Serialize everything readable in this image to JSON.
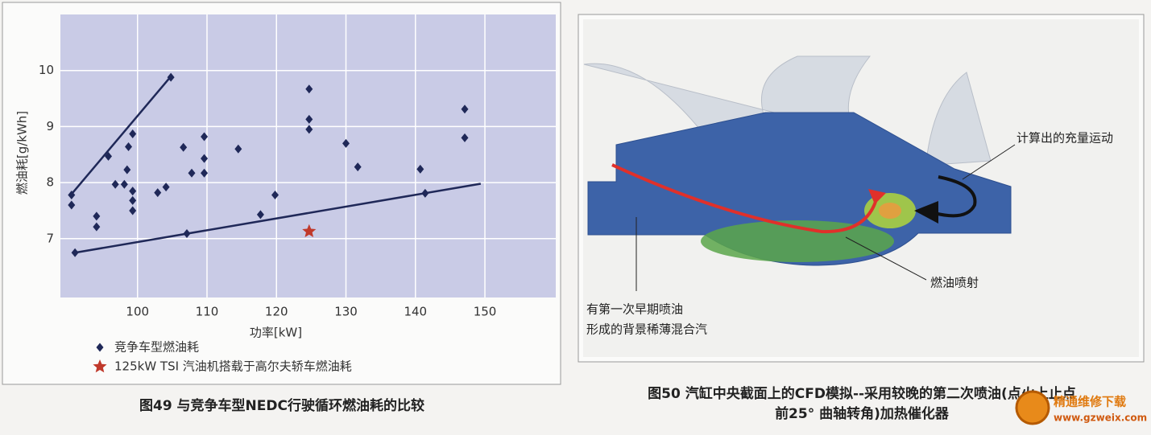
{
  "chart_data": {
    "type": "scatter",
    "xlabel": "功率[kW]",
    "ylabel": "燃油耗[g/kWh]",
    "xlim": [
      88.9,
      160.2
    ],
    "ylim": [
      5.95,
      11.0
    ],
    "xticks": [
      100,
      110,
      120,
      130,
      140,
      150
    ],
    "yticks": [
      7,
      8,
      9,
      10
    ],
    "grid": true,
    "background": "#c9cbe6",
    "legend": "bottom-left",
    "series": [
      {
        "name": "竞争车型燃油耗",
        "marker": "diamond",
        "color": "#1f2858",
        "x": [
          90.5,
          90.5,
          91.0,
          94.1,
          94.1,
          95.8,
          96.8,
          98.1,
          98.5,
          98.7,
          99.3,
          99.3,
          99.3,
          99.3,
          102.9,
          104.1,
          104.8,
          106.6,
          107.1,
          107.8,
          109.6,
          109.6,
          109.6,
          114.5,
          117.7,
          119.8,
          124.7,
          124.7,
          124.7,
          130.0,
          131.7,
          140.7,
          141.4,
          147.1,
          147.1
        ],
        "y": [
          7.78,
          7.6,
          6.75,
          7.4,
          7.21,
          8.47,
          7.97,
          7.97,
          8.23,
          8.64,
          8.87,
          7.85,
          7.68,
          7.5,
          7.82,
          7.92,
          9.88,
          8.63,
          7.09,
          8.17,
          8.17,
          8.43,
          8.82,
          8.6,
          7.43,
          7.78,
          9.67,
          9.13,
          8.95,
          8.7,
          8.28,
          8.24,
          7.81,
          9.31,
          8.8
        ]
      },
      {
        "name": "125kW TSI 汽油机搭载于高尔夫轿车燃油耗",
        "marker": "star",
        "color": "#c0392b",
        "x": [
          124.7
        ],
        "y": [
          7.13
        ]
      }
    ],
    "trendlines": [
      {
        "color": "#1f2858",
        "x": [
          90.4,
          104.7
        ],
        "y": [
          7.78,
          9.88
        ]
      },
      {
        "color": "#1f2858",
        "x": [
          91.0,
          149.4
        ],
        "y": [
          6.75,
          7.98
        ]
      }
    ]
  },
  "figure49": {
    "caption": "图49 与竞争车型NEDC行驶循环燃油耗的比较"
  },
  "figure50": {
    "labels": [
      "计算出的充量运动",
      "燃油喷射",
      "有第一次早期喷油",
      "形成的背景稀薄混合汽"
    ],
    "caption_lines": [
      "图50 汽缸中央截面上的CFD模拟--采用较晚的第二次喷油(点火上止点",
      "前25° 曲轴转角)加热催化器"
    ]
  },
  "watermark": {
    "name": "精通维修下载",
    "url": "www.gzweix.com"
  }
}
